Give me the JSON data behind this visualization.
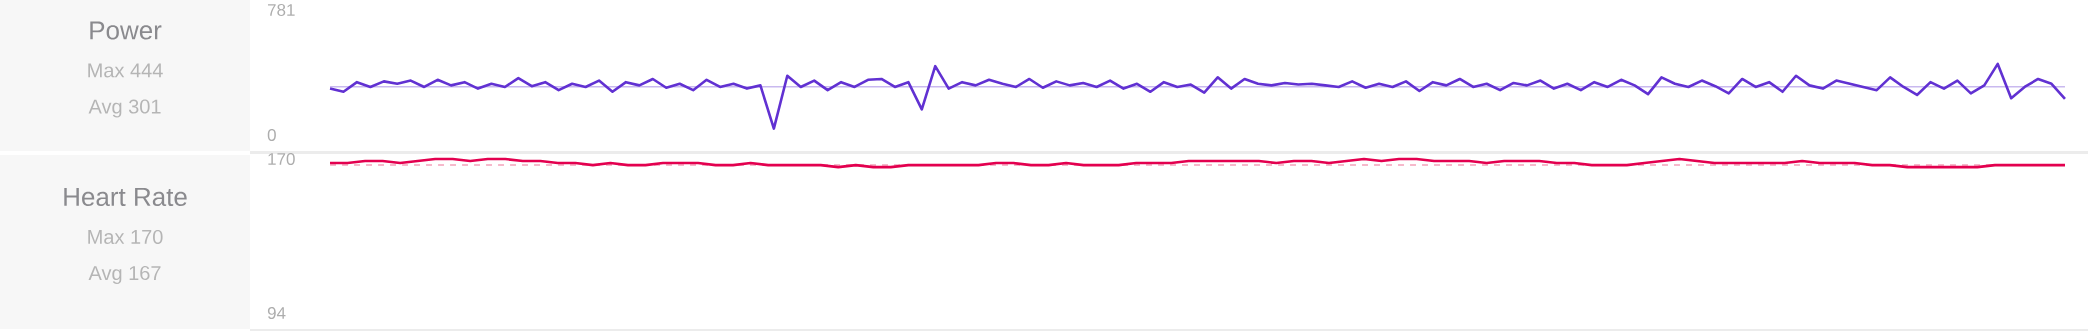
{
  "chart_data": [
    {
      "type": "line",
      "title": "Power",
      "annotations": [
        "Max 444",
        "Avg 301"
      ],
      "categories": [
        null,
        null,
        null,
        null,
        null,
        null,
        null,
        null,
        null,
        null,
        null,
        null,
        null,
        null,
        null,
        null,
        null,
        null,
        null,
        null,
        null,
        null,
        null,
        null,
        null,
        null,
        null,
        null,
        null,
        null,
        null,
        null,
        null,
        null,
        null,
        null,
        null,
        null,
        null,
        null,
        null,
        null,
        null,
        null,
        null,
        null,
        null,
        null,
        null,
        null,
        null,
        null,
        null,
        null,
        null,
        null,
        null,
        null,
        null,
        null,
        null,
        null,
        null,
        null,
        null,
        null,
        null,
        null,
        null,
        null,
        null,
        null,
        null,
        null,
        null,
        null,
        null,
        null,
        null,
        null,
        null,
        null,
        null,
        null,
        null,
        null,
        null,
        null,
        null,
        null,
        null,
        null,
        null,
        null,
        null,
        null,
        null,
        null,
        null,
        null,
        null,
        null,
        null,
        null,
        null,
        null,
        null,
        null,
        null,
        null,
        null,
        null,
        null,
        null,
        null,
        null,
        null,
        null,
        null,
        null,
        null,
        null,
        null,
        null,
        null,
        null,
        null,
        null,
        null,
        null
      ],
      "series": [
        {
          "color": "#6131d2",
          "values": [
            290,
            270,
            330,
            300,
            335,
            320,
            340,
            300,
            345,
            310,
            330,
            290,
            320,
            300,
            355,
            305,
            330,
            280,
            320,
            300,
            340,
            270,
            330,
            310,
            350,
            295,
            320,
            280,
            345,
            300,
            320,
            290,
            310,
            40,
            370,
            300,
            340,
            280,
            330,
            300,
            345,
            350,
            300,
            330,
            160,
            430,
            290,
            330,
            310,
            345,
            320,
            300,
            350,
            295,
            335,
            310,
            325,
            300,
            340,
            290,
            320,
            270,
            330,
            300,
            315,
            265,
            360,
            290,
            350,
            320,
            310,
            325,
            315,
            320,
            310,
            300,
            335,
            295,
            320,
            300,
            335,
            275,
            330,
            310,
            350,
            300,
            320,
            280,
            325,
            310,
            340,
            290,
            320,
            280,
            330,
            300,
            345,
            310,
            255,
            360,
            320,
            300,
            340,
            305,
            260,
            350,
            300,
            330,
            270,
            370,
            310,
            290,
            340,
            320,
            300,
            280,
            360,
            300,
            250,
            330,
            290,
            340,
            260,
            310,
            444,
            230,
            300,
            350,
            320,
            225
          ]
        }
      ],
      "ylim": [
        0,
        781
      ],
      "yticks": [
        0,
        781
      ],
      "ref_lines": [
        {
          "axis": "y",
          "value": 301,
          "color": "#c9b9ef",
          "line_style": "solid"
        }
      ]
    },
    {
      "type": "line",
      "title": "Heart Rate",
      "annotations": [
        "Max 170",
        "Avg 167"
      ],
      "categories": [
        null,
        null,
        null,
        null,
        null,
        null,
        null,
        null,
        null,
        null,
        null,
        null,
        null,
        null,
        null,
        null,
        null,
        null,
        null,
        null,
        null,
        null,
        null,
        null,
        null,
        null,
        null,
        null,
        null,
        null,
        null,
        null,
        null,
        null,
        null,
        null,
        null,
        null,
        null,
        null,
        null,
        null,
        null,
        null,
        null,
        null,
        null,
        null,
        null,
        null,
        null,
        null,
        null,
        null,
        null,
        null,
        null,
        null,
        null,
        null,
        null,
        null,
        null,
        null,
        null,
        null,
        null,
        null,
        null,
        null,
        null,
        null,
        null,
        null,
        null,
        null,
        null,
        null,
        null,
        null,
        null,
        null,
        null,
        null,
        null,
        null,
        null,
        null,
        null,
        null,
        null,
        null,
        null,
        null,
        null,
        null,
        null,
        null,
        null,
        null
      ],
      "series": [
        {
          "color": "#e3004f",
          "values": [
            168,
            168,
            169,
            169,
            168,
            169,
            170,
            170,
            169,
            170,
            170,
            169,
            169,
            168,
            168,
            167,
            168,
            167,
            167,
            168,
            168,
            168,
            167,
            167,
            168,
            167,
            167,
            167,
            167,
            166,
            167,
            166,
            166,
            167,
            167,
            167,
            167,
            167,
            168,
            168,
            167,
            167,
            168,
            167,
            167,
            167,
            168,
            168,
            168,
            169,
            169,
            169,
            169,
            169,
            168,
            169,
            169,
            168,
            169,
            170,
            169,
            170,
            170,
            169,
            169,
            169,
            168,
            169,
            169,
            169,
            168,
            168,
            167,
            167,
            167,
            168,
            169,
            170,
            169,
            168,
            168,
            168,
            168,
            168,
            169,
            168,
            168,
            168,
            167,
            167,
            166,
            166,
            166,
            166,
            166,
            167,
            167,
            167,
            167,
            167
          ]
        }
      ],
      "ylim": [
        94,
        171
      ],
      "yticks": [
        94,
        170
      ],
      "ref_lines": [
        {
          "axis": "y",
          "value": 167,
          "color": "#f4a3bb",
          "line_style": "dashed"
        }
      ]
    }
  ]
}
